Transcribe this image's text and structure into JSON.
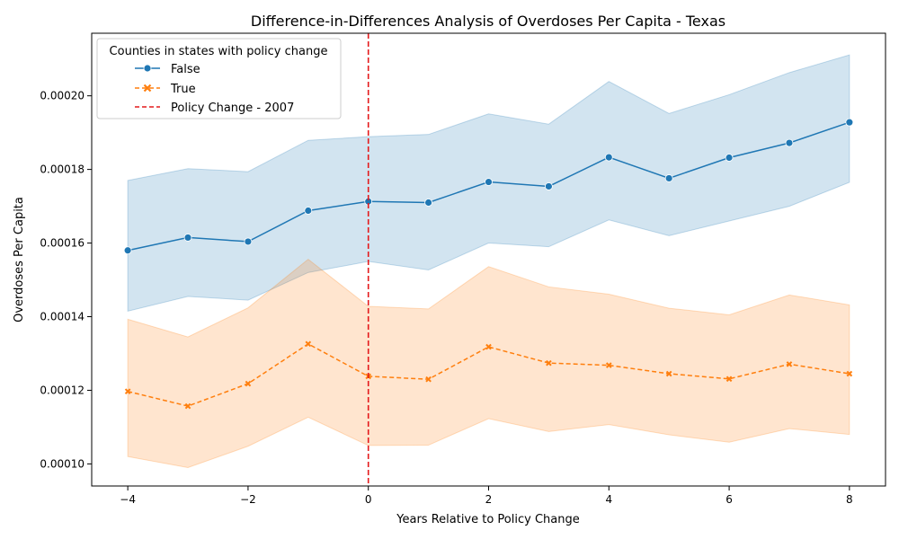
{
  "chart_data": {
    "type": "line",
    "title": "Difference-in-Differences Analysis of Overdoses Per Capita - Texas",
    "xlabel": "Years Relative to Policy Change",
    "ylabel": "Overdoses Per Capita",
    "xlim": [
      -4.6,
      8.6
    ],
    "ylim": [
      9.4e-05,
      0.000217
    ],
    "x_ticks": [
      -4,
      -2,
      0,
      2,
      4,
      6,
      8
    ],
    "x_tick_labels": [
      "−4",
      "−2",
      "0",
      "2",
      "4",
      "6",
      "8"
    ],
    "y_ticks": [
      0.0001,
      0.00012,
      0.00014,
      0.00016,
      0.00018,
      0.0002
    ],
    "y_tick_labels": [
      "0.00010",
      "0.00012",
      "0.00014",
      "0.00016",
      "0.00018",
      "0.00020"
    ],
    "grid": false,
    "legend_title": "Counties in states with policy change",
    "legend_position": "upper-left",
    "x": [
      -4,
      -3,
      -2,
      -1,
      0,
      1,
      2,
      3,
      4,
      5,
      6,
      7,
      8
    ],
    "series": [
      {
        "name": "False",
        "color": "#1f77b4",
        "line_style": "solid",
        "marker": "circle",
        "values": [
          0.000158,
          0.0001615,
          0.0001604,
          0.0001688,
          0.0001713,
          0.000171,
          0.0001766,
          0.0001754,
          0.0001833,
          0.0001776,
          0.0001832,
          0.0001872,
          0.0001928
        ],
        "ci_lower": [
          0.0001415,
          0.0001455,
          0.0001445,
          0.000152,
          0.000155,
          0.0001527,
          0.00016,
          0.000159,
          0.0001663,
          0.000162,
          0.000166,
          0.00017,
          0.0001765
        ],
        "ci_upper": [
          0.000177,
          0.0001802,
          0.0001794,
          0.0001879,
          0.0001889,
          0.0001895,
          0.0001951,
          0.0001923,
          0.0002039,
          0.0001952,
          0.0002003,
          0.0002063,
          0.0002111
        ]
      },
      {
        "name": "True",
        "color": "#ff7f0e",
        "line_style": "dashed",
        "marker": "x",
        "values": [
          0.0001197,
          0.0001157,
          0.0001218,
          0.0001326,
          0.0001238,
          0.000123,
          0.0001318,
          0.0001274,
          0.0001268,
          0.0001245,
          0.0001231,
          0.0001271,
          0.0001245
        ],
        "ci_lower": [
          0.000102,
          9.9e-05,
          0.0001048,
          0.0001127,
          0.000105,
          0.0001051,
          0.0001123,
          0.0001088,
          0.0001107,
          0.0001079,
          0.0001059,
          0.0001096,
          0.000108
        ],
        "ci_upper": [
          0.0001393,
          0.0001345,
          0.0001424,
          0.0001556,
          0.0001428,
          0.0001421,
          0.0001536,
          0.0001481,
          0.0001461,
          0.0001423,
          0.0001405,
          0.0001459,
          0.0001432
        ]
      }
    ],
    "reference_line": {
      "x": 0,
      "label": "Policy Change - 2007",
      "color": "#e41a1c",
      "line_style": "dashed"
    }
  }
}
